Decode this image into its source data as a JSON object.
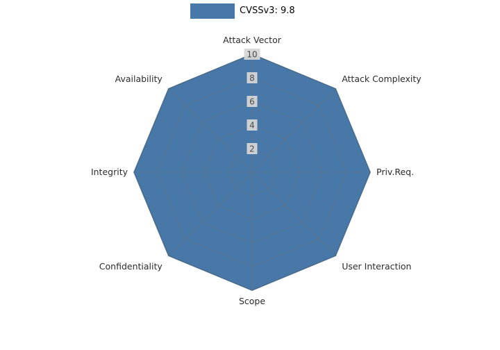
{
  "legend": {
    "label": "CVSSv3: 9.8",
    "swatch_color": "#4878a8"
  },
  "chart_data": {
    "type": "radar",
    "categories": [
      "Attack Vector",
      "Attack Complexity",
      "Priv.Req.",
      "User Interaction",
      "Scope",
      "Confidentiality",
      "Integrity",
      "Availability"
    ],
    "series": [
      {
        "name": "CVSSv3: 9.8",
        "values": [
          10,
          10,
          10,
          10,
          10,
          10,
          10,
          10
        ]
      }
    ],
    "ticks": [
      2,
      4,
      6,
      8,
      10
    ],
    "rlim": [
      0,
      10
    ],
    "fill_color": "#4878a8",
    "edge_color": "#3d6b96",
    "grid_color": "#6b7077",
    "tick_box_color": "#d6d6d6",
    "tick_text_color": "#4a4a4a",
    "axis_label_color": "#2b2b2b",
    "legend_position": "top",
    "grid": "on"
  }
}
